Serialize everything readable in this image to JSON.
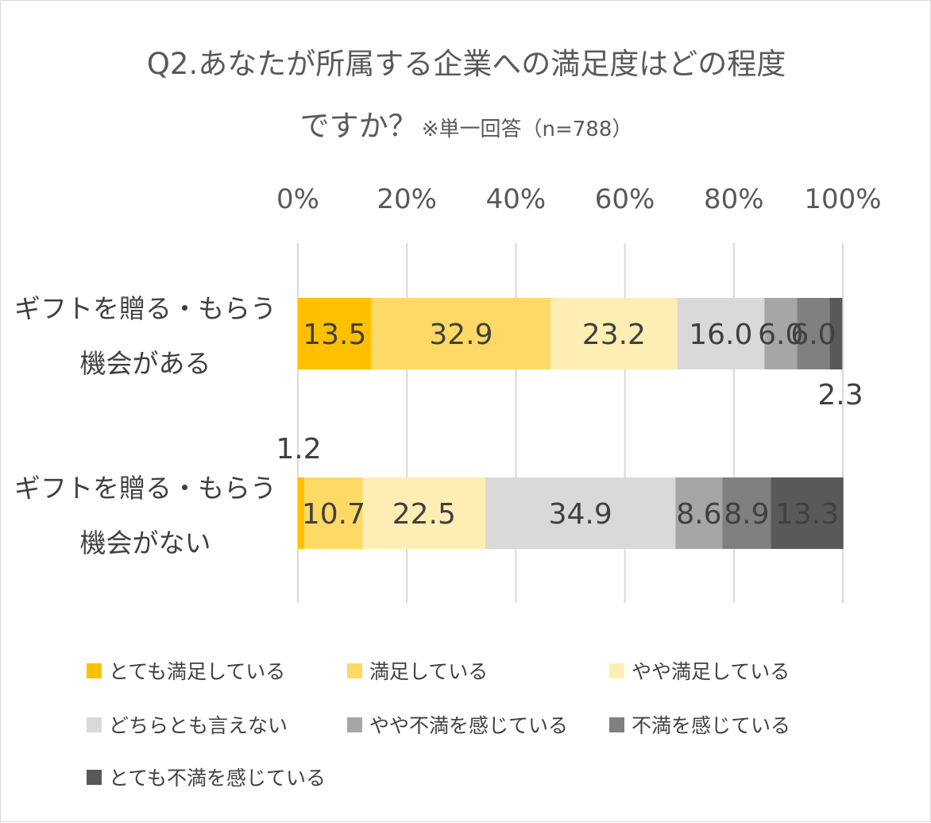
{
  "chart_data": {
    "type": "bar",
    "orientation": "horizontal",
    "stacked": true,
    "title_line1": "Q2.あなたが所属する企業への満足度はどの程度",
    "title_line2": "ですか？",
    "title_note": "※単一回答（n=788）",
    "xlim": [
      0,
      100
    ],
    "x_ticks": [
      "0%",
      "20%",
      "40%",
      "60%",
      "80%",
      "100%"
    ],
    "grid": true,
    "legend_position": "bottom",
    "categories": [
      [
        "ギフトを贈る・もらう",
        "機会がある"
      ],
      [
        "ギフトを贈る・もらう",
        "機会がない"
      ]
    ],
    "series": [
      {
        "name": "とても満足している",
        "color": "#ffc000",
        "values": [
          13.5,
          1.2
        ],
        "labels": [
          "13.5",
          "1.2"
        ]
      },
      {
        "name": "満足している",
        "color": "#ffd965",
        "values": [
          32.9,
          10.7
        ],
        "labels": [
          "32.9",
          "10.7"
        ]
      },
      {
        "name": "やや満足している",
        "color": "#ffeeb3",
        "values": [
          23.2,
          22.5
        ],
        "labels": [
          "23.2",
          "22.5"
        ]
      },
      {
        "name": "どちらとも言えない",
        "color": "#d9d9d9",
        "values": [
          16.0,
          34.9
        ],
        "labels": [
          "16.0",
          "34.9"
        ]
      },
      {
        "name": "やや不満を感じている",
        "color": "#a6a6a6",
        "values": [
          6.0,
          8.6
        ],
        "labels": [
          "6.0",
          "8.6"
        ]
      },
      {
        "name": "不満を感じている",
        "color": "#808080",
        "values": [
          6.0,
          8.9
        ],
        "labels": [
          "6.0",
          "8.9"
        ]
      },
      {
        "name": "とても不満を感じている",
        "color": "#595959",
        "values": [
          2.3,
          13.3
        ],
        "labels": [
          "2.3",
          "13.3"
        ]
      }
    ]
  }
}
